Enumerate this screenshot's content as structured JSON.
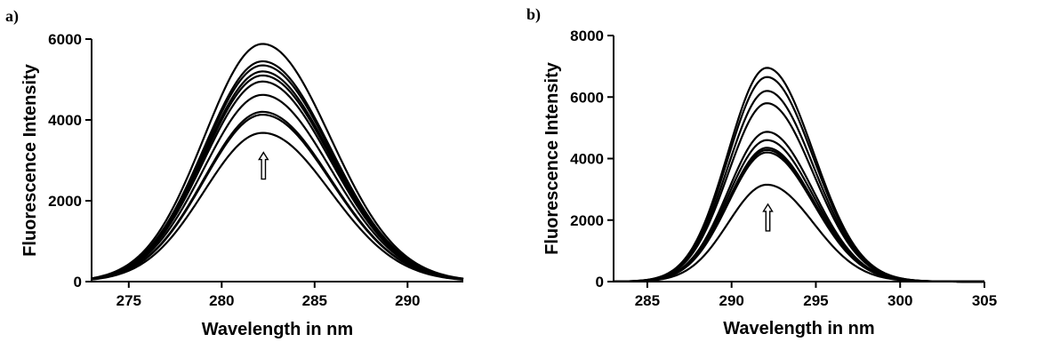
{
  "chart_data": [
    {
      "type": "line",
      "panel_label": "a)",
      "xlabel": "Wavelength in nm",
      "ylabel": "Fluorescence Intensity",
      "xlim": [
        273,
        293
      ],
      "ylim": [
        0,
        6000
      ],
      "x_ticks": [
        275,
        280,
        285,
        290
      ],
      "y_ticks": [
        0,
        2000,
        4000,
        6000
      ],
      "grid": false,
      "legend": "none",
      "annotation": "upward arrow indicating increasing intensity",
      "peak_wavelength": 282.2,
      "series": [
        {
          "peak": 5880
        },
        {
          "peak": 5450
        },
        {
          "peak": 5350
        },
        {
          "peak": 5200
        },
        {
          "peak": 5100
        },
        {
          "peak": 4950
        },
        {
          "peak": 4620
        },
        {
          "peak": 4200
        },
        {
          "peak": 4130
        },
        {
          "peak": 3680
        }
      ]
    },
    {
      "type": "line",
      "panel_label": "b)",
      "xlabel": "Wavelength in nm",
      "ylabel": "Fluorescence Intensity",
      "xlim": [
        283,
        305
      ],
      "ylim": [
        0,
        8000
      ],
      "x_ticks": [
        285,
        290,
        295,
        300,
        305
      ],
      "y_ticks": [
        0,
        2000,
        4000,
        6000,
        8000
      ],
      "grid": false,
      "legend": "none",
      "annotation": "upward arrow indicating increasing intensity",
      "peak_wavelength": 292.1,
      "series": [
        {
          "peak": 6950
        },
        {
          "peak": 6650
        },
        {
          "peak": 6200
        },
        {
          "peak": 5800
        },
        {
          "peak": 4870
        },
        {
          "peak": 4600
        },
        {
          "peak": 4350
        },
        {
          "peak": 4280
        },
        {
          "peak": 4200
        },
        {
          "peak": 3150
        }
      ]
    }
  ]
}
